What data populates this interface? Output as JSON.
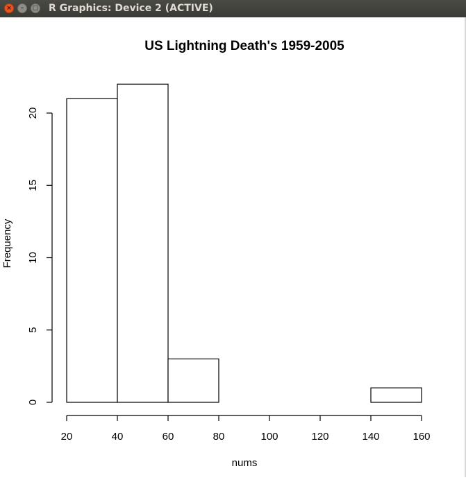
{
  "window": {
    "title": "R Graphics: Device 2 (ACTIVE)",
    "close_glyph": "×",
    "minimize_glyph": "–",
    "maximize_glyph": "□"
  },
  "chart_data": {
    "type": "bar",
    "title": "US Lightning Death's 1959-2005",
    "xlabel": "nums",
    "ylabel": "Frequency",
    "bins": [
      {
        "from": 20,
        "to": 40,
        "count": 21
      },
      {
        "from": 40,
        "to": 60,
        "count": 22
      },
      {
        "from": 60,
        "to": 80,
        "count": 3
      },
      {
        "from": 80,
        "to": 100,
        "count": 0
      },
      {
        "from": 100,
        "to": 120,
        "count": 0
      },
      {
        "from": 120,
        "to": 140,
        "count": 0
      },
      {
        "from": 140,
        "to": 160,
        "count": 1
      }
    ],
    "x_ticks": [
      20,
      40,
      60,
      80,
      100,
      120,
      140,
      160
    ],
    "y_ticks": [
      0,
      5,
      10,
      15,
      20
    ],
    "xlim": [
      20,
      160
    ],
    "ylim": [
      0,
      22
    ],
    "grid": false,
    "fill_color": "#ffffff",
    "stroke_color": "#000000"
  }
}
